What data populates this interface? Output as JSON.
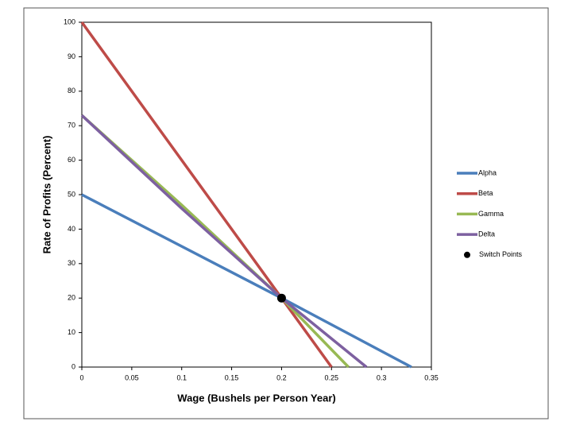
{
  "chart_data": {
    "type": "line",
    "x_label": "Wage (Bushels per Person Year)",
    "y_label": "Rate of Profits (Percent)",
    "xlim": [
      0,
      0.35
    ],
    "xticks": [
      0,
      0.05,
      0.1,
      0.15,
      0.2,
      0.25,
      0.3,
      0.35
    ],
    "ylim": [
      0,
      100
    ],
    "yticks": [
      0,
      10,
      20,
      30,
      40,
      50,
      60,
      70,
      80,
      90,
      100
    ],
    "legend": "right",
    "series": [
      {
        "name": "Alpha",
        "color": "#4a7ebb",
        "x": [
          0,
          0.2,
          0.33
        ],
        "values": [
          50,
          20,
          0
        ]
      },
      {
        "name": "Beta",
        "color": "#be4b48",
        "x": [
          0,
          0.2,
          0.25
        ],
        "values": [
          100,
          20,
          0
        ]
      },
      {
        "name": "Gamma",
        "color": "#98b954",
        "x": [
          0,
          0.1,
          0.2,
          0.267
        ],
        "values": [
          73,
          47,
          20,
          0
        ]
      },
      {
        "name": "Delta",
        "color": "#7d60a0",
        "x": [
          0,
          0.1,
          0.2,
          0.285
        ],
        "values": [
          73,
          46,
          20,
          0
        ]
      },
      {
        "name": "Switch Points",
        "color": "#000000",
        "marker": true,
        "x": [
          0.2
        ],
        "values": [
          20
        ]
      }
    ]
  }
}
